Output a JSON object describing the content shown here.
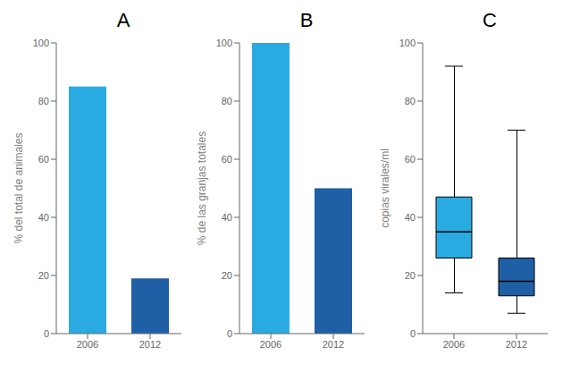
{
  "chart_data": [
    {
      "type": "bar",
      "title": "A",
      "categories": [
        "2006",
        "2012"
      ],
      "values": [
        85,
        19
      ],
      "colors": [
        "#29ABE2",
        "#1F5FA6"
      ],
      "ylabel": "% del total de animales",
      "ylim": [
        0,
        100
      ],
      "yticks": [
        0,
        20,
        40,
        60,
        80,
        100
      ]
    },
    {
      "type": "bar",
      "title": "B",
      "categories": [
        "2006",
        "2012"
      ],
      "values": [
        100,
        50
      ],
      "colors": [
        "#29ABE2",
        "#1F5FA6"
      ],
      "ylabel": "% de las granjas totales",
      "ylim": [
        0,
        100
      ],
      "yticks": [
        0,
        20,
        40,
        60,
        80,
        100
      ]
    },
    {
      "type": "box",
      "title": "C",
      "categories": [
        "2006",
        "2012"
      ],
      "whislo": [
        14,
        7
      ],
      "q1": [
        26,
        13
      ],
      "med": [
        35,
        18
      ],
      "q3": [
        47,
        26
      ],
      "whishi": [
        92,
        70
      ],
      "colors": [
        "#29ABE2",
        "#1F5FA6"
      ],
      "ylabel": "copias virales/ml",
      "ylim": [
        0,
        100
      ],
      "yticks": [
        0,
        20,
        40,
        60,
        80,
        100
      ]
    }
  ]
}
